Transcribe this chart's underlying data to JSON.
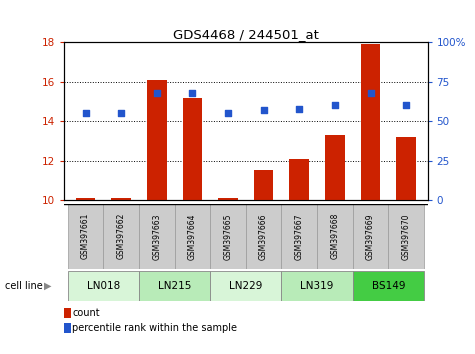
{
  "title": "GDS4468 / 244501_at",
  "samples": [
    "GSM397661",
    "GSM397662",
    "GSM397663",
    "GSM397664",
    "GSM397665",
    "GSM397666",
    "GSM397667",
    "GSM397668",
    "GSM397669",
    "GSM397670"
  ],
  "bar_values": [
    10.1,
    10.1,
    16.1,
    15.2,
    10.1,
    11.5,
    12.1,
    13.3,
    17.9,
    13.2
  ],
  "percentile_values": [
    55,
    55,
    68,
    68,
    55,
    57,
    58,
    60,
    68,
    60
  ],
  "bar_bottom": 10.0,
  "ylim_left": [
    10,
    18
  ],
  "ylim_right": [
    0,
    100
  ],
  "yticks_left": [
    10,
    12,
    14,
    16,
    18
  ],
  "yticks_right": [
    0,
    25,
    50,
    75,
    100
  ],
  "bar_color": "#cc2200",
  "dot_color": "#2255cc",
  "bar_width": 0.55,
  "cell_lines": [
    {
      "name": "LN018",
      "samples": [
        0,
        1
      ],
      "color": "#d8f5d8"
    },
    {
      "name": "LN215",
      "samples": [
        2,
        3
      ],
      "color": "#b8ebb8"
    },
    {
      "name": "LN229",
      "samples": [
        4,
        5
      ],
      "color": "#d8f5d8"
    },
    {
      "name": "LN319",
      "samples": [
        6,
        7
      ],
      "color": "#b8ebb8"
    },
    {
      "name": "BS149",
      "samples": [
        8,
        9
      ],
      "color": "#44cc44"
    }
  ],
  "grid_yticks": [
    12,
    14,
    16
  ],
  "grid_color": "#000000",
  "legend_count_label": "count",
  "legend_pct_label": "percentile rank within the sample",
  "cell_line_label": "cell line",
  "tick_color_left": "#cc2200",
  "tick_color_right": "#2255cc",
  "sample_area_color": "#cccccc",
  "sample_area_border": "#999999",
  "right_tick_labels": [
    "0",
    "25",
    "50",
    "75",
    "100%"
  ]
}
